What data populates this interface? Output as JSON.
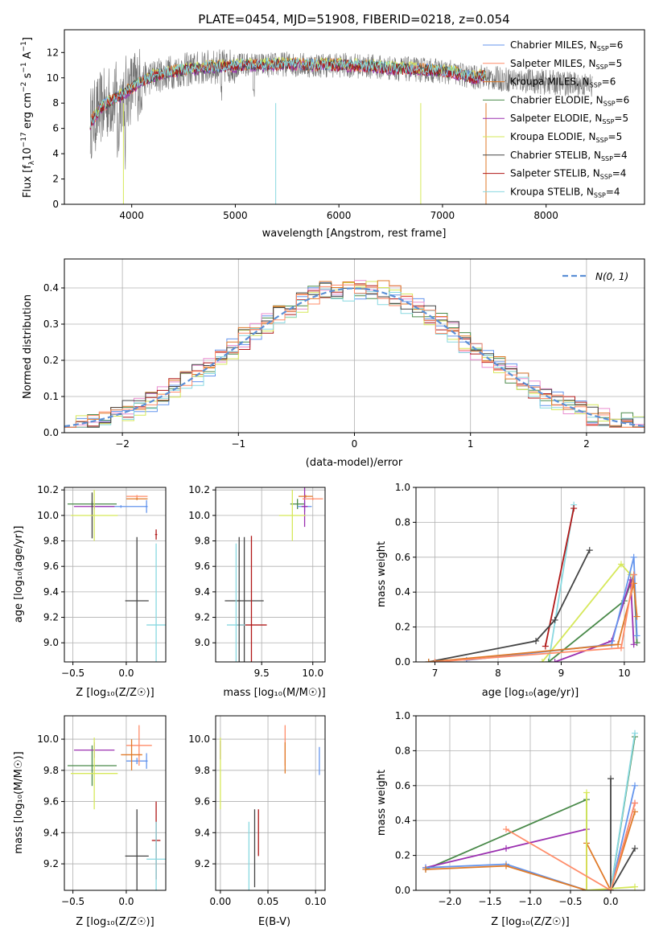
{
  "colors": {
    "Chabrier MILES": "#6495ed",
    "Salpeter MILES": "#ff8c69",
    "Kroupa MILES": "#e07a28",
    "Chabrier ELODIE": "#4a8a4a",
    "Salpeter ELODIE": "#9b30b0",
    "Kroupa ELODIE": "#d6e85a",
    "Chabrier STELIB": "#444444",
    "Salpeter STELIB": "#b01818",
    "Kroupa STELIB": "#88d8e0",
    "normal": "#5b8fd6",
    "salpeter_elodie_hist": "#e98ccf"
  },
  "chart_data": [
    {
      "type": "line",
      "title": "PLATE=0454, MJD=51908, FIBERID=0218, z=0.054",
      "xlabel": "wavelength [Angstrom, rest frame]",
      "ylabel": "Flux [f_λ10^-17 erg cm^-2 s^-1 A^-1]",
      "xlim": [
        3350,
        8950
      ],
      "ylim": [
        0,
        13.8
      ],
      "xticks": [
        "4000",
        "5000",
        "6000",
        "7000",
        "8000"
      ],
      "yticks": [
        "0",
        "2",
        "4",
        "6",
        "8",
        "10",
        "12"
      ],
      "legend_position": "top-right",
      "series": [
        {
          "name": "Chabrier MILES, N_SSP=6"
        },
        {
          "name": "Salpeter MILES, N_SSP=5"
        },
        {
          "name": "Kroupa MILES, N_SSP=6"
        },
        {
          "name": "Chabrier ELODIE, N_SSP=6"
        },
        {
          "name": "Salpeter ELODIE, N_SSP=5"
        },
        {
          "name": "Kroupa ELODIE, N_SSP=5"
        },
        {
          "name": "Chabrier STELIB, N_SSP=4"
        },
        {
          "name": "Salpeter STELIB, N_SSP=4"
        },
        {
          "name": "Kroupa STELIB, N_SSP=4"
        }
      ],
      "continuum": {
        "x": [
          3600,
          3700,
          3800,
          3900,
          4000,
          4100,
          4200,
          4300,
          4400,
          4500,
          4700,
          4900,
          5100,
          5300,
          5500,
          5700,
          6000,
          6300,
          6600,
          6900,
          7100,
          7300,
          7400
        ],
        "y": [
          6.4,
          7.6,
          8.2,
          8.6,
          9.2,
          9.8,
          10.1,
          10.3,
          10.5,
          10.6,
          10.8,
          10.9,
          11.0,
          11.0,
          11.1,
          11.0,
          11.0,
          10.9,
          10.7,
          10.6,
          10.4,
          10.0,
          10.2
        ]
      }
    },
    {
      "type": "histogram",
      "xlabel": "(data-model)/error",
      "ylabel": "Normed distribution",
      "xlim": [
        -2.5,
        2.5
      ],
      "ylim": [
        0,
        0.48
      ],
      "xticks": [
        "−2",
        "−1",
        "0",
        "1",
        "2"
      ],
      "yticks": [
        "0.0",
        "0.1",
        "0.2",
        "0.3",
        "0.4"
      ],
      "legend": "N(0, 1)",
      "legend_position": "top-right",
      "bin_width": 0.1,
      "series": [
        {
          "name": "Chabrier ELODIE",
          "values": [
            0.02,
            0.02,
            0.03,
            0.04,
            0.04,
            0.05,
            0.06,
            0.07,
            0.07,
            0.08,
            0.09,
            0.1,
            0.11,
            0.12,
            0.14,
            0.15,
            0.17,
            0.19,
            0.2,
            0.22,
            0.24,
            0.26,
            0.27,
            0.29,
            0.31,
            0.32,
            0.34,
            0.35,
            0.36,
            0.37,
            0.38,
            0.39,
            0.4,
            0.45,
            0.38,
            0.39,
            0.4,
            0.38,
            0.37,
            0.44,
            0.4,
            0.37,
            0.38,
            0.36,
            0.35,
            0.34,
            0.33,
            0.32,
            0.3,
            0.28,
            0.27,
            0.25,
            0.23,
            0.21,
            0.2,
            0.18,
            0.16,
            0.15,
            0.13,
            0.12,
            0.1,
            0.09,
            0.08,
            0.07,
            0.06,
            0.05,
            0.05,
            0.04,
            0.03,
            0.03,
            0.03,
            0.02,
            0.02,
            0.02,
            0.02,
            0.02,
            0.02,
            0.02,
            0.02,
            0.02,
            0.02,
            0.02,
            0.02,
            0.02,
            0.02,
            0.02,
            0.02,
            0.02,
            0.02,
            0.02,
            0.02,
            0.02,
            0.02,
            0.02,
            0.02,
            0.02,
            0.02,
            0.02,
            0.02,
            0.02
          ]
        },
        {
          "name": "Chabrier MILES",
          "values": [
            0.02,
            0.03,
            0.04,
            0.04,
            0.05,
            0.06,
            0.07,
            0.08,
            0.09,
            0.1,
            0.11,
            0.12,
            0.13,
            0.15,
            0.17,
            0.18,
            0.2,
            0.22,
            0.24,
            0.26,
            0.28,
            0.29,
            0.31,
            0.33,
            0.34,
            0.35,
            0.36,
            0.37,
            0.38,
            0.39,
            0.4,
            0.41,
            0.38,
            0.39,
            0.45,
            0.38,
            0.41,
            0.37,
            0.39,
            0.38,
            0.37,
            0.36,
            0.35,
            0.34,
            0.32,
            0.31,
            0.29,
            0.27,
            0.25,
            0.24,
            0.22,
            0.2,
            0.18,
            0.17,
            0.15,
            0.14,
            0.12,
            0.11,
            0.1,
            0.09,
            0.08,
            0.07,
            0.06,
            0.05,
            0.05,
            0.04,
            0.03,
            0.03,
            0.02,
            0.02,
            0.02,
            0.02,
            0.02,
            0.02,
            0.02,
            0.02,
            0.02,
            0.02,
            0.02,
            0.02,
            0.02,
            0.02,
            0.02,
            0.02,
            0.02,
            0.02,
            0.02,
            0.02,
            0.02,
            0.02,
            0.02,
            0.02,
            0.02,
            0.02,
            0.02,
            0.02,
            0.02,
            0.02,
            0.02,
            0.02
          ]
        },
        {
          "name": "Salpeter ELODIE",
          "values": [
            0.02,
            0.02,
            0.03,
            0.04,
            0.05,
            0.06,
            0.07,
            0.08,
            0.09,
            0.1,
            0.11,
            0.12,
            0.14,
            0.15,
            0.16,
            0.18,
            0.2,
            0.21,
            0.23,
            0.25,
            0.27,
            0.29,
            0.3,
            0.32,
            0.34,
            0.35,
            0.36,
            0.37,
            0.39,
            0.38,
            0.4,
            0.41,
            0.39,
            0.38,
            0.4,
            0.39,
            0.37,
            0.38,
            0.36,
            0.37,
            0.39,
            0.35,
            0.36,
            0.34,
            0.33,
            0.31,
            0.3,
            0.28,
            0.26,
            0.24,
            0.23,
            0.21,
            0.19,
            0.17,
            0.16,
            0.14,
            0.13,
            0.11,
            0.1,
            0.09,
            0.08,
            0.07,
            0.06,
            0.05,
            0.04,
            0.04,
            0.03,
            0.03,
            0.02,
            0.02,
            0.02,
            0.02,
            0.02,
            0.02,
            0.02,
            0.02,
            0.02,
            0.02,
            0.02,
            0.02,
            0.02,
            0.02,
            0.02,
            0.02,
            0.02,
            0.02,
            0.02,
            0.02,
            0.02,
            0.02,
            0.02,
            0.02,
            0.02,
            0.02,
            0.02,
            0.02,
            0.02,
            0.02,
            0.02,
            0.02
          ]
        },
        {
          "name": "Salpeter STELIB",
          "values": [
            0.02,
            0.03,
            0.03,
            0.04,
            0.05,
            0.06,
            0.07,
            0.08,
            0.09,
            0.1,
            0.11,
            0.13,
            0.14,
            0.15,
            0.17,
            0.19,
            0.2,
            0.22,
            0.24,
            0.26,
            0.27,
            0.29,
            0.31,
            0.32,
            0.33,
            0.35,
            0.36,
            0.37,
            0.38,
            0.39,
            0.4,
            0.38,
            0.39,
            0.4,
            0.37,
            0.45,
            0.38,
            0.4,
            0.39,
            0.37,
            0.36,
            0.38,
            0.35,
            0.34,
            0.32,
            0.31,
            0.29,
            0.28,
            0.26,
            0.25,
            0.23,
            0.21,
            0.2,
            0.18,
            0.16,
            0.15,
            0.13,
            0.12,
            0.11,
            0.1,
            0.09,
            0.08,
            0.07,
            0.06,
            0.05,
            0.04,
            0.04,
            0.03,
            0.03,
            0.02,
            0.02,
            0.02,
            0.02,
            0.02,
            0.02,
            0.02,
            0.02,
            0.02,
            0.02,
            0.02,
            0.02,
            0.02,
            0.02,
            0.02,
            0.02,
            0.02,
            0.02,
            0.02,
            0.02,
            0.02,
            0.02,
            0.02,
            0.02,
            0.02,
            0.02,
            0.02,
            0.02,
            0.02,
            0.02,
            0.02
          ]
        },
        {
          "name": "Kroupa ELODIE",
          "values": [
            0.02,
            0.02,
            0.03,
            0.04,
            0.04,
            0.05,
            0.06,
            0.07,
            0.08,
            0.09,
            0.1,
            0.12,
            0.13,
            0.14,
            0.16,
            0.17,
            0.19,
            0.21,
            0.23,
            0.25,
            0.26,
            0.28,
            0.3,
            0.31,
            0.33,
            0.34,
            0.36,
            0.37,
            0.38,
            0.39,
            0.4,
            0.38,
            0.41,
            0.39,
            0.4,
            0.37,
            0.38,
            0.39,
            0.37,
            0.38,
            0.36,
            0.39,
            0.37,
            0.35,
            0.34,
            0.33,
            0.31,
            0.3,
            0.28,
            0.26,
            0.25,
            0.23,
            0.22,
            0.2,
            0.18,
            0.17,
            0.15,
            0.14,
            0.12,
            0.11,
            0.1,
            0.09,
            0.08,
            0.07,
            0.06,
            0.05,
            0.04,
            0.04,
            0.03,
            0.03,
            0.02,
            0.02,
            0.02,
            0.02,
            0.02,
            0.02,
            0.02,
            0.02,
            0.02,
            0.02,
            0.02,
            0.02,
            0.02,
            0.02,
            0.02,
            0.02,
            0.02,
            0.02,
            0.02,
            0.02,
            0.02,
            0.02,
            0.02,
            0.02,
            0.02,
            0.02,
            0.02,
            0.02,
            0.02,
            0.02
          ]
        }
      ]
    },
    {
      "type": "scatter",
      "xlabel": "Z [log10(Z/Z_sun)]",
      "ylabel": "age [log10(age/yr)]",
      "xlim": [
        -0.58,
        0.37
      ],
      "ylim": [
        8.85,
        10.22
      ],
      "xticks": [
        "−0.5",
        "0.0"
      ],
      "yticks": [
        "9.0",
        "9.2",
        "9.4",
        "9.6",
        "9.8",
        "10.0",
        "10.2"
      ]
    },
    {
      "type": "scatter",
      "xlabel": "mass [log10(M/M_sun)]",
      "xlim": [
        9.05,
        10.12
      ],
      "ylim": [
        8.85,
        10.22
      ],
      "xticks": [
        "9.5",
        "10.0"
      ],
      "yticks": [
        "9.0",
        "9.2",
        "9.4",
        "9.6",
        "9.8",
        "10.0",
        "10.2"
      ]
    },
    {
      "type": "line",
      "xlabel": "age [log10(age/yr)]",
      "ylabel": "mass weight",
      "xlim": [
        6.7,
        10.32
      ],
      "ylim": [
        0,
        1.0
      ],
      "xticks": [
        "7",
        "8",
        "9",
        "10"
      ],
      "yticks": [
        "0.0",
        "0.2",
        "0.4",
        "0.6",
        "0.8",
        "1.0"
      ]
    },
    {
      "type": "scatter",
      "xlabel": "Z [log10(Z/Z_sun)]",
      "ylabel": "mass [log10(M/M_sun)]",
      "xlim": [
        -0.58,
        0.37
      ],
      "ylim": [
        9.03,
        10.15
      ],
      "xticks": [
        "−0.5",
        "0.0"
      ],
      "yticks": [
        "9.2",
        "9.4",
        "9.6",
        "9.8",
        "10.0"
      ]
    },
    {
      "type": "scatter",
      "xlabel": "E(B-V)",
      "xlim": [
        -0.005,
        0.11
      ],
      "ylim": [
        9.03,
        10.15
      ],
      "xticks": [
        "0.00",
        "0.05",
        "0.10"
      ],
      "yticks": [
        "9.2",
        "9.4",
        "9.6",
        "9.8",
        "10.0"
      ]
    },
    {
      "type": "line",
      "xlabel": "Z [log10(Z/Z_sun)]",
      "ylabel": "mass weight",
      "xlim": [
        -2.42,
        0.42
      ],
      "ylim": [
        0,
        1.0
      ],
      "xticks": [
        "−2.0",
        "−1.5",
        "−1.0",
        "−0.5",
        "0.0"
      ],
      "yticks": [
        "0.0",
        "0.2",
        "0.4",
        "0.6",
        "0.8",
        "1.0"
      ]
    }
  ],
  "labels": {
    "title": "PLATE=0454, MJD=51908, FIBERID=0218, z=0.054",
    "p1_x": "wavelength [Angstrom, rest frame]",
    "p2_x": "(data-model)/error",
    "p2_y": "Normed distribution",
    "p2_legend": "N(0, 1)",
    "age_y": "age  [log₁₀(age/yr)]",
    "z_x": "Z [log₁₀(Z/Z☉)]",
    "mass_x": "mass [log₁₀(M/M☉)]",
    "mw_y": "mass weight",
    "age_x": "age  [log₁₀(age/yr)]",
    "mass_y": "mass [log₁₀(M/M☉)]",
    "ebv_x": "E(B-V)"
  }
}
